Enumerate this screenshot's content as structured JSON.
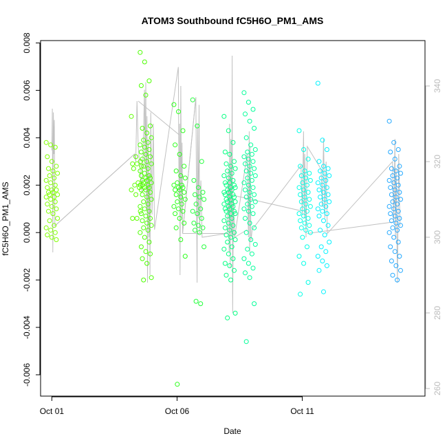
{
  "chart_data": {
    "type": "scatter",
    "title": "ATOM3 Southbound fC5H6O_PM1_AMS",
    "xlabel": "Date",
    "ylabel": "fC5H6O_PM1_AMS",
    "x_unit": "day of October",
    "xlim": [
      0.55,
      15.9
    ],
    "ylim": [
      -0.0069,
      0.0081
    ],
    "y2lim": [
      258,
      352
    ],
    "x_ticks": [
      {
        "value": 1,
        "label": "Oct 01"
      },
      {
        "value": 6,
        "label": "Oct 06"
      },
      {
        "value": 11,
        "label": "Oct 11"
      }
    ],
    "y_ticks": [
      {
        "value": -0.006,
        "label": "-0.006"
      },
      {
        "value": -0.004,
        "label": "-0.004"
      },
      {
        "value": -0.002,
        "label": "-0.002"
      },
      {
        "value": 0.0,
        "label": "0.000"
      },
      {
        "value": 0.002,
        "label": "0.002"
      },
      {
        "value": 0.004,
        "label": "0.004"
      },
      {
        "value": 0.006,
        "label": "0.006"
      },
      {
        "value": 0.008,
        "label": "0.008"
      }
    ],
    "y2_ticks": [
      {
        "value": 260,
        "label": "260"
      },
      {
        "value": 280,
        "label": "280"
      },
      {
        "value": 300,
        "label": "300"
      },
      {
        "value": 320,
        "label": "320"
      },
      {
        "value": 340,
        "label": "340"
      }
    ],
    "grid": false,
    "clusters": [
      {
        "x": 1.0,
        "color": "#80ff00",
        "values": [
          0.0038,
          0.0037,
          0.0036,
          0.0032,
          0.003,
          0.0028,
          0.0027,
          0.0026,
          0.0025,
          0.0024,
          0.0023,
          0.0022,
          0.0021,
          0.002,
          0.0019,
          0.0018,
          0.0018,
          0.0017,
          0.0017,
          0.0016,
          0.0016,
          0.0015,
          0.0015,
          0.0014,
          0.0013,
          0.0012,
          0.0011,
          0.001,
          0.0009,
          0.0008,
          0.0006,
          0.0005,
          0.0003,
          0.0002,
          0.0001,
          0.0,
          -0.0001,
          -0.0002,
          -0.0003
        ]
      },
      {
        "x": 4.4,
        "color": "#5eff00",
        "values": [
          0.0049,
          0.0032,
          0.003,
          0.0029,
          0.0029,
          0.0028,
          0.0027,
          0.0021,
          0.002,
          0.002,
          0.0019,
          0.0018,
          0.0016,
          0.0009,
          0.0006,
          0.0006
        ]
      },
      {
        "x": 4.75,
        "color": "#4cff00",
        "values": [
          0.0076,
          0.0072,
          0.0064,
          0.0062,
          0.0058,
          0.0045,
          0.0044,
          0.0042,
          0.004,
          0.0039,
          0.0038,
          0.0037,
          0.0036,
          0.0035,
          0.0034,
          0.0033,
          0.0032,
          0.0031,
          0.003,
          0.0029,
          0.0028,
          0.0027,
          0.0026,
          0.0025,
          0.0024,
          0.0024,
          0.0023,
          0.0023,
          0.0022,
          0.0022,
          0.0021,
          0.0021,
          0.002,
          0.002,
          0.0019,
          0.0019,
          0.0018,
          0.0018,
          0.0017,
          0.0016,
          0.0015,
          0.0014,
          0.0013,
          0.0012,
          0.0011,
          0.001,
          0.0009,
          0.0008,
          0.0007,
          0.0006,
          0.0005,
          0.0004,
          0.0003,
          0.0002,
          0.0001,
          0.0,
          -0.0002,
          -0.0004,
          -0.0006,
          -0.0008,
          -0.0009,
          -0.0011,
          -0.0013,
          -0.0019,
          -0.002
        ]
      },
      {
        "x": 6.1,
        "color": "#2bff1a",
        "values": [
          0.0054,
          0.0051,
          0.0043,
          0.0037,
          0.0033,
          0.0028,
          0.0026,
          0.0024,
          0.0023,
          0.0021,
          0.002,
          0.002,
          0.0019,
          0.0019,
          0.0018,
          0.0018,
          0.0017,
          0.0016,
          0.0015,
          0.0014,
          0.0013,
          0.0012,
          0.0011,
          0.001,
          0.0009,
          0.0008,
          0.0006,
          0.0004,
          0.0002,
          -0.0003,
          -0.001,
          -0.0064
        ]
      },
      {
        "x": 6.85,
        "color": "#22ff3a",
        "values": [
          0.0056,
          0.0045,
          0.003,
          0.0022,
          0.0019,
          0.0017,
          0.0016,
          0.0015,
          0.0014,
          0.0012,
          0.001,
          0.0009,
          0.0008,
          0.0006,
          0.0004,
          0.0003,
          0.0002,
          0.0001,
          0.0,
          -0.0006,
          -0.0029,
          -0.003
        ]
      },
      {
        "x": 8.1,
        "color": "#00ff80",
        "values": [
          0.0049,
          0.0043,
          0.0038,
          0.0034,
          0.0033,
          0.003,
          0.0029,
          0.0028,
          0.0027,
          0.0026,
          0.0025,
          0.0024,
          0.0023,
          0.0022,
          0.0021,
          0.0021,
          0.002,
          0.002,
          0.0019,
          0.0019,
          0.0018,
          0.0018,
          0.0017,
          0.0017,
          0.0016,
          0.0016,
          0.0015,
          0.0015,
          0.0014,
          0.0014,
          0.0013,
          0.0013,
          0.0012,
          0.0012,
          0.0011,
          0.0011,
          0.001,
          0.001,
          0.0009,
          0.0009,
          0.0008,
          0.0008,
          0.0007,
          0.0006,
          0.0005,
          0.0004,
          0.0003,
          0.0002,
          0.0001,
          0.0,
          -0.0001,
          -0.0002,
          -0.0003,
          -0.0004,
          -0.0006,
          -0.0007,
          -0.0009,
          -0.0011,
          -0.0013,
          -0.0014,
          -0.0016,
          -0.0018,
          -0.002,
          -0.0034,
          -0.0036
        ]
      },
      {
        "x": 8.9,
        "color": "#00ff99",
        "values": [
          0.0059,
          0.0055,
          0.0052,
          0.005,
          0.0047,
          0.0044,
          0.004,
          0.0037,
          0.0035,
          0.0034,
          0.0033,
          0.0032,
          0.0031,
          0.003,
          0.0029,
          0.0028,
          0.0027,
          0.0026,
          0.0025,
          0.0024,
          0.0023,
          0.0022,
          0.0021,
          0.002,
          0.0019,
          0.0018,
          0.0017,
          0.0016,
          0.0015,
          0.0014,
          0.0013,
          0.0012,
          0.0011,
          0.001,
          0.0009,
          0.0008,
          0.0006,
          0.0004,
          0.0002,
          0.0,
          -0.0003,
          -0.0005,
          -0.0007,
          -0.0009,
          -0.0011,
          -0.0013,
          -0.0015,
          -0.0017,
          -0.0019,
          -0.003,
          -0.0046
        ]
      },
      {
        "x": 11.1,
        "color": "#00ffe6",
        "values": [
          0.0043,
          0.0035,
          0.0031,
          0.0028,
          0.0026,
          0.0025,
          0.0024,
          0.0023,
          0.0022,
          0.0021,
          0.002,
          0.0019,
          0.0018,
          0.0017,
          0.0016,
          0.0015,
          0.0014,
          0.0013,
          0.0012,
          0.0011,
          0.001,
          0.0009,
          0.0008,
          0.0007,
          0.0006,
          0.0005,
          0.0004,
          0.0003,
          0.0002,
          0.0001,
          0.0,
          -0.0002,
          -0.0006,
          -0.001,
          -0.0013,
          -0.0021,
          -0.0026
        ]
      },
      {
        "x": 11.85,
        "color": "#00f2ff",
        "values": [
          0.0063,
          0.0039,
          0.0035,
          0.003,
          0.0028,
          0.0027,
          0.0026,
          0.0025,
          0.0024,
          0.0023,
          0.0022,
          0.0021,
          0.002,
          0.0019,
          0.0018,
          0.0017,
          0.0016,
          0.0015,
          0.0014,
          0.0013,
          0.0012,
          0.0011,
          0.001,
          0.0009,
          0.0008,
          0.0007,
          0.0005,
          0.0003,
          0.0001,
          -0.0001,
          -0.0004,
          -0.0006,
          -0.0008,
          -0.001,
          -0.0012,
          -0.0014,
          -0.0016,
          -0.0025
        ]
      },
      {
        "x": 14.7,
        "color": "#22a8ff",
        "values": [
          0.0047,
          0.0038,
          0.0035,
          0.0034,
          0.0031,
          0.0028,
          0.0027,
          0.0026,
          0.0025,
          0.0024,
          0.0023,
          0.0022,
          0.0021,
          0.002,
          0.0019,
          0.0018,
          0.0017,
          0.0016,
          0.0015,
          0.0014,
          0.0013,
          0.0012,
          0.0011,
          0.001,
          0.0009,
          0.0008,
          0.0007,
          0.0006,
          0.0005,
          0.0004,
          0.0003,
          0.0002,
          0.0001,
          0.0,
          -0.0002,
          -0.0004,
          -0.0006,
          -0.0008,
          -0.001,
          -0.0012,
          -0.0014,
          -0.0016,
          -0.0018,
          -0.002
        ]
      }
    ],
    "line_series": {
      "axis": "right",
      "color": "#c0c0c0",
      "points": [
        [
          1.0,
          323
        ],
        [
          1.02,
          334
        ],
        [
          1.04,
          296
        ],
        [
          1.06,
          333
        ],
        [
          1.08,
          322
        ],
        [
          1.1,
          331
        ],
        [
          1.12,
          303
        ],
        [
          4.3,
          322
        ],
        [
          4.35,
          320
        ],
        [
          4.4,
          336
        ],
        [
          4.45,
          324
        ],
        [
          4.6,
          312
        ],
        [
          4.65,
          324
        ],
        [
          4.7,
          339
        ],
        [
          4.72,
          318
        ],
        [
          4.75,
          341
        ],
        [
          4.78,
          307
        ],
        [
          4.8,
          332
        ],
        [
          4.82,
          288
        ],
        [
          4.85,
          326
        ],
        [
          4.88,
          300
        ],
        [
          4.9,
          317
        ],
        [
          4.92,
          290
        ],
        [
          4.95,
          333
        ],
        [
          5.0,
          306
        ],
        [
          5.05,
          330
        ],
        [
          5.1,
          302
        ],
        [
          6.05,
          345
        ],
        [
          6.08,
          310
        ],
        [
          6.1,
          330
        ],
        [
          6.12,
          290
        ],
        [
          6.15,
          340
        ],
        [
          6.18,
          305
        ],
        [
          6.2,
          325
        ],
        [
          6.22,
          301
        ],
        [
          6.75,
          337
        ],
        [
          6.8,
          288
        ],
        [
          6.82,
          330
        ],
        [
          6.85,
          305
        ],
        [
          6.88,
          335
        ],
        [
          6.9,
          301
        ],
        [
          6.95,
          315
        ],
        [
          7.0,
          300
        ],
        [
          8.0,
          301
        ],
        [
          8.05,
          318
        ],
        [
          8.08,
          296
        ],
        [
          8.1,
          330
        ],
        [
          8.12,
          292
        ],
        [
          8.15,
          326
        ],
        [
          8.18,
          300
        ],
        [
          8.2,
          348
        ],
        [
          8.22,
          280
        ],
        [
          8.25,
          310
        ],
        [
          8.3,
          300
        ],
        [
          8.8,
          322
        ],
        [
          8.85,
          300
        ],
        [
          8.88,
          328
        ],
        [
          8.9,
          296
        ],
        [
          8.92,
          324
        ],
        [
          8.95,
          299
        ],
        [
          9.0,
          302
        ],
        [
          10.95,
          319
        ],
        [
          11.0,
          306
        ],
        [
          11.05,
          328
        ],
        [
          11.08,
          305
        ],
        [
          11.1,
          322
        ],
        [
          11.15,
          300
        ],
        [
          11.2,
          324
        ],
        [
          11.75,
          318
        ],
        [
          11.8,
          308
        ],
        [
          11.85,
          326
        ],
        [
          11.9,
          305
        ],
        [
          11.95,
          320
        ],
        [
          12.0,
          301
        ],
        [
          14.6,
          320
        ],
        [
          14.65,
          304
        ],
        [
          14.7,
          326
        ],
        [
          14.72,
          300
        ],
        [
          14.75,
          318
        ],
        [
          14.8,
          288
        ],
        [
          14.85,
          322
        ],
        [
          14.9,
          303
        ]
      ],
      "connectors": [
        [
          [
            1.12,
            303
          ],
          [
            4.3,
            322
          ]
        ],
        [
          [
            4.45,
            336
          ],
          [
            6.1,
            327
          ]
        ],
        [
          [
            6.22,
            301
          ],
          [
            6.75,
            337
          ]
        ],
        [
          [
            6.22,
            301
          ],
          [
            8.0,
            301
          ]
        ],
        [
          [
            8.3,
            300
          ],
          [
            8.8,
            302
          ]
        ],
        [
          [
            8.3,
            311
          ],
          [
            10.95,
            307
          ]
        ],
        [
          [
            11.2,
            301
          ],
          [
            14.6,
            304
          ]
        ]
      ]
    }
  }
}
